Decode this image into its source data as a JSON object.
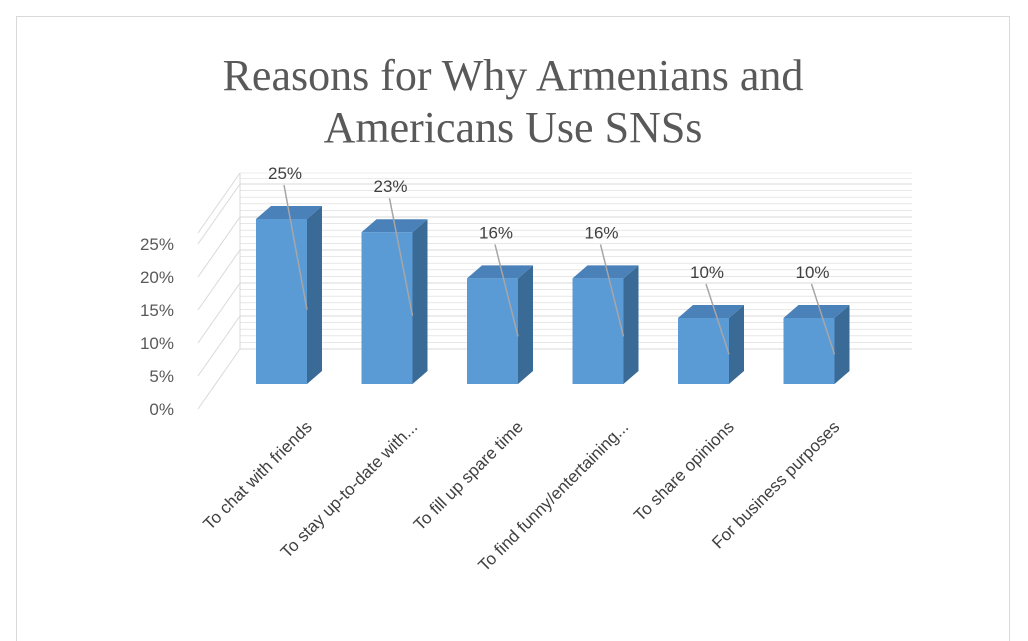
{
  "chart_data": {
    "type": "bar",
    "title": "Reasons for Why Armenians and Americans Use SNSs",
    "title_lines": [
      "Reasons for Why Armenians and",
      "Americans Use SNSs"
    ],
    "categories": [
      "To chat with friends",
      "To stay up-to-date with...",
      "To fill up spare time",
      "To find funny/entertaining...",
      "To share opinions",
      "For business purposes"
    ],
    "values": [
      25,
      23,
      16,
      16,
      10,
      10
    ],
    "data_labels": [
      "25%",
      "23%",
      "16%",
      "16%",
      "10%",
      "10%"
    ],
    "y_ticks": [
      "0%",
      "5%",
      "10%",
      "15%",
      "20%",
      "25%"
    ],
    "ylim": [
      0,
      25
    ],
    "y_unit": "%",
    "grid": true,
    "legend": "none",
    "style": "3d-column",
    "colors": {
      "bar_front": "#5b9bd5",
      "bar_side": "#3a6a96",
      "bar_top": "#4a81b8",
      "gridline": "#d9d9d9",
      "leader_line": "#a6a6a6",
      "text": "#595959"
    }
  }
}
